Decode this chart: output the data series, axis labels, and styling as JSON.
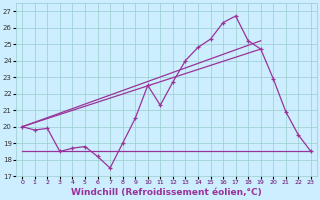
{
  "bg_color": "#cceeff",
  "line_color": "#993399",
  "grid_color": "#99cccc",
  "xlabel": "Windchill (Refroidissement éolien,°C)",
  "xlabel_fontsize": 6.5,
  "ylim": [
    17,
    27.5
  ],
  "yticks": [
    17,
    18,
    19,
    20,
    21,
    22,
    23,
    24,
    25,
    26,
    27
  ],
  "xlim": [
    -0.5,
    23.5
  ],
  "xticks": [
    0,
    1,
    2,
    3,
    4,
    5,
    6,
    7,
    8,
    9,
    10,
    11,
    12,
    13,
    14,
    15,
    16,
    17,
    18,
    19,
    20,
    21,
    22,
    23
  ],
  "main_x": [
    0,
    1,
    2,
    3,
    4,
    5,
    6,
    7,
    8,
    9,
    10,
    11,
    12,
    13,
    14,
    15,
    16,
    17,
    18,
    19,
    20,
    21,
    22,
    23
  ],
  "main_y": [
    20.0,
    19.8,
    19.9,
    18.5,
    18.7,
    18.8,
    18.2,
    17.5,
    19.0,
    20.5,
    22.5,
    21.3,
    22.7,
    24.0,
    24.8,
    25.3,
    26.3,
    26.7,
    25.2,
    24.7,
    22.9,
    20.9,
    19.5,
    18.5
  ],
  "trend1_x": [
    0,
    19
  ],
  "trend1_y": [
    20.0,
    25.2
  ],
  "trend2_x": [
    0,
    19
  ],
  "trend2_y": [
    20.0,
    24.7
  ],
  "hline_x": [
    0,
    23
  ],
  "hline_y": [
    18.5,
    18.5
  ]
}
